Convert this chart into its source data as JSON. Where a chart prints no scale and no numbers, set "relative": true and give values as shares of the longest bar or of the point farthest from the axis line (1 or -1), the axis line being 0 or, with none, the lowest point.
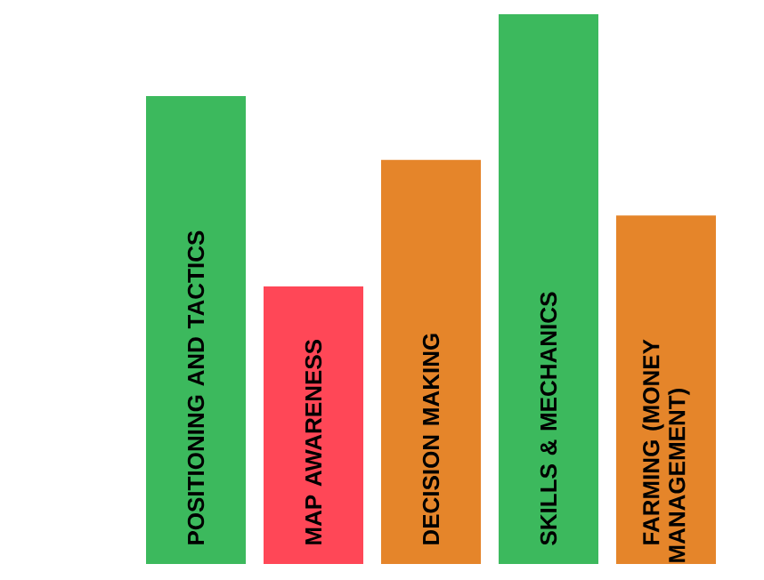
{
  "chart_data": {
    "type": "bar",
    "relative": true,
    "categories": [
      "POSITIONING AND TACTICS",
      "MAP AWARENESS",
      "DECISION MAKING",
      "SKILLS & MECHANICS",
      "FARMING (MONEY MANAGEMENT)"
    ],
    "values": [
      0.851,
      0.505,
      0.735,
      1,
      0.634
    ],
    "colors": [
      "#3cb95d",
      "#ff4757",
      "#e5852a",
      "#3cb95d",
      "#e5852a"
    ]
  }
}
